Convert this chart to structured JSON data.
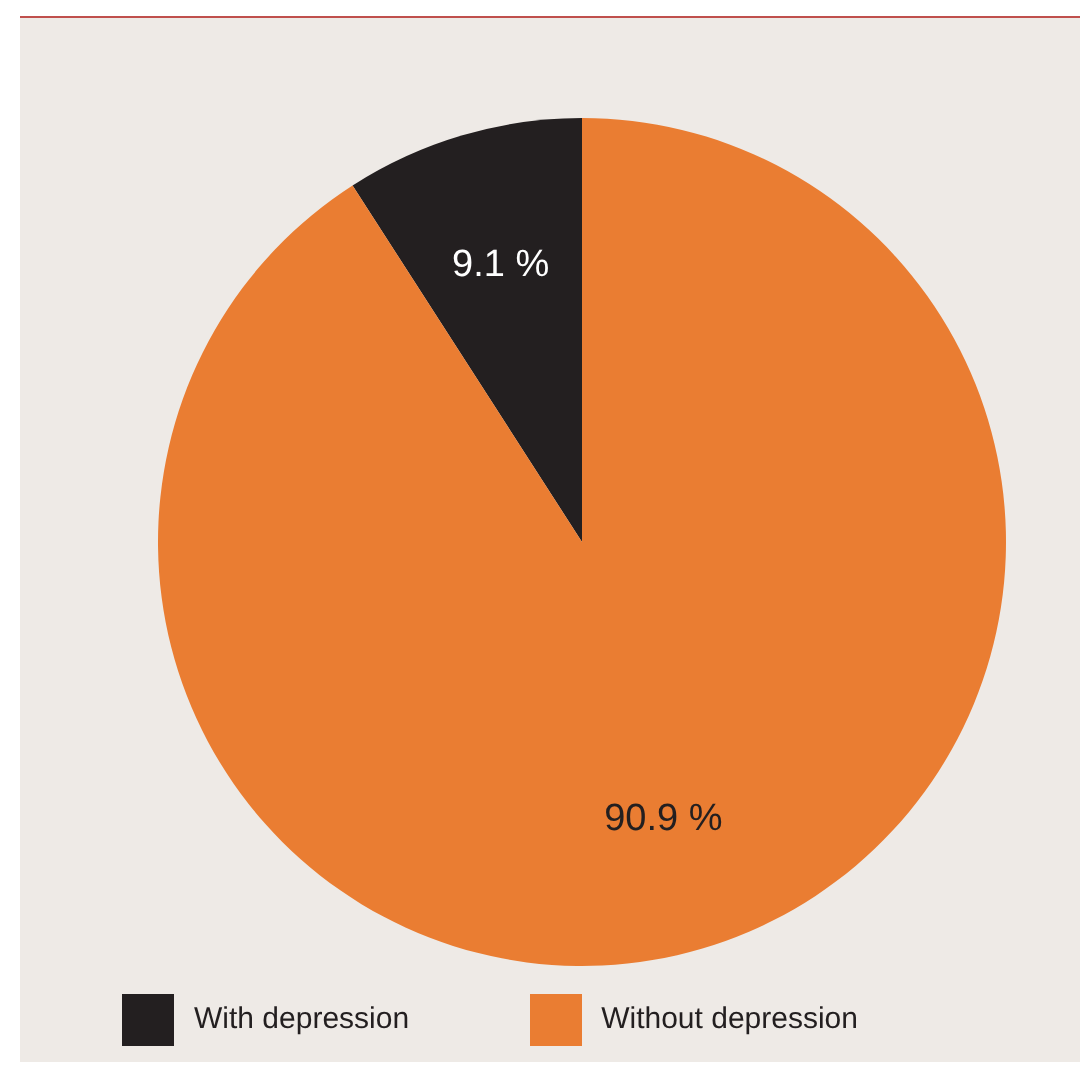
{
  "chart_data": {
    "type": "pie",
    "categories": [
      "With depression",
      "Without depression"
    ],
    "values": [
      9.1,
      90.9
    ],
    "colors": [
      "#231f20",
      "#ea7d32"
    ],
    "value_labels": [
      "9.1 %",
      "90.9 %"
    ],
    "legend": "bottom"
  }
}
